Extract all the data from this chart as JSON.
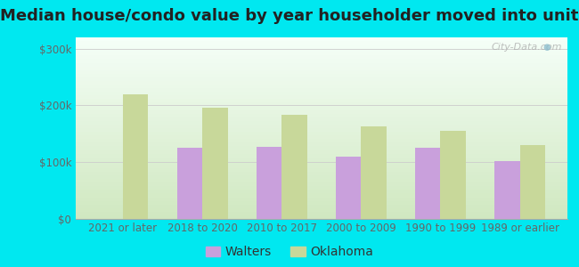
{
  "title": "Median house/condo value by year householder moved into unit",
  "categories": [
    "2021 or later",
    "2018 to 2020",
    "2010 to 2017",
    "2000 to 2009",
    "1990 to 1999",
    "1989 or earlier"
  ],
  "walters_values": [
    0,
    125000,
    127000,
    110000,
    126000,
    102000
  ],
  "oklahoma_values": [
    220000,
    196000,
    183000,
    163000,
    155000,
    130000
  ],
  "walters_color": "#c9a0dc",
  "oklahoma_color": "#c8d89a",
  "bg_outer": "#00e8f0",
  "bg_inner_top": "#f5fff8",
  "bg_inner_bottom": "#d0e8c0",
  "yticks": [
    0,
    100000,
    200000,
    300000
  ],
  "ylabels": [
    "$0",
    "$100k",
    "$200k",
    "$300k"
  ],
  "ylim": [
    0,
    320000
  ],
  "title_fontsize": 13,
  "axis_fontsize": 8.5,
  "legend_fontsize": 10,
  "bar_width": 0.32,
  "watermark": "City-Data.com"
}
